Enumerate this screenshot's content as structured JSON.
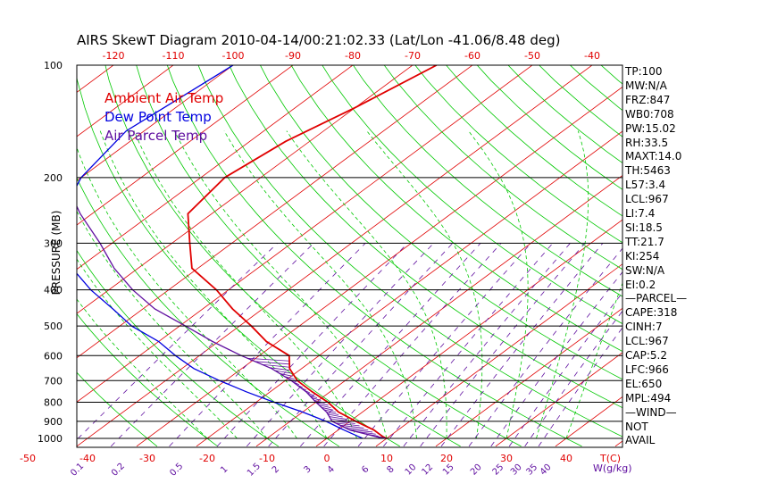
{
  "chart_data": {
    "type": "line",
    "title": "AIRS SkewT Diagram 2010-04-14/00:21:02.33 (Lat/Lon -41.06/8.48 deg)",
    "ylabel": "PRESSURE (MB)",
    "pressure_ticks": [
      100,
      200,
      300,
      400,
      500,
      600,
      700,
      800,
      900,
      1000
    ],
    "top_temp_ticks": [
      -120,
      -110,
      -100,
      -90,
      -80,
      -70,
      -60,
      -50,
      -40
    ],
    "bottom_temp_ticks": [
      -50,
      -40,
      -30,
      -20,
      -10,
      0,
      10,
      20,
      30,
      40
    ],
    "bottom_temp_unit": "T(C)",
    "mixing_ratio_ticks": [
      "0.1",
      "0.2",
      "0.5",
      "1",
      "1.5",
      "2",
      "3",
      "4",
      "6",
      "8",
      "10",
      "12",
      "15",
      "20",
      "25",
      "30",
      "35",
      "40"
    ],
    "mixing_ratio_unit": "W(g/kg)",
    "legend": [
      {
        "label": "Ambient Air Temp",
        "color": "#e00000"
      },
      {
        "label": "Dew Point Temp",
        "color": "#0000e0"
      },
      {
        "label": "Air Parcel Temp",
        "color": "#6010a0"
      }
    ],
    "series": [
      {
        "name": "Ambient Air Temp",
        "color": "#e00000",
        "points": [
          [
            100,
            -66
          ],
          [
            130,
            -70
          ],
          [
            160,
            -74
          ],
          [
            200,
            -76
          ],
          [
            250,
            -74
          ],
          [
            300,
            -67
          ],
          [
            350,
            -61
          ],
          [
            400,
            -52
          ],
          [
            450,
            -45
          ],
          [
            500,
            -38
          ],
          [
            550,
            -32
          ],
          [
            600,
            -25
          ],
          [
            650,
            -22
          ],
          [
            700,
            -18
          ],
          [
            750,
            -13
          ],
          [
            800,
            -8
          ],
          [
            850,
            -4
          ],
          [
            900,
            1
          ],
          [
            950,
            6
          ],
          [
            990,
            9
          ],
          [
            1000,
            10
          ]
        ]
      },
      {
        "name": "Dew Point Temp",
        "color": "#0000e0",
        "points": [
          [
            100,
            -100
          ],
          [
            150,
            -103
          ],
          [
            200,
            -100
          ],
          [
            250,
            -95
          ],
          [
            300,
            -88
          ],
          [
            350,
            -81
          ],
          [
            400,
            -73
          ],
          [
            450,
            -65
          ],
          [
            500,
            -58
          ],
          [
            550,
            -50
          ],
          [
            600,
            -44
          ],
          [
            650,
            -38
          ],
          [
            700,
            -31
          ],
          [
            750,
            -24
          ],
          [
            800,
            -17
          ],
          [
            850,
            -10
          ],
          [
            900,
            -4
          ],
          [
            950,
            1
          ],
          [
            990,
            5
          ],
          [
            1000,
            6
          ]
        ]
      },
      {
        "name": "Air Parcel Temp",
        "color": "#6010a0",
        "points": [
          [
            100,
            -130
          ],
          [
            150,
            -115
          ],
          [
            200,
            -103
          ],
          [
            250,
            -92
          ],
          [
            300,
            -82
          ],
          [
            350,
            -74
          ],
          [
            400,
            -66
          ],
          [
            450,
            -58
          ],
          [
            500,
            -49
          ],
          [
            550,
            -41
          ],
          [
            600,
            -33
          ],
          [
            650,
            -25
          ],
          [
            700,
            -19
          ],
          [
            750,
            -14
          ],
          [
            800,
            -10
          ],
          [
            850,
            -6
          ],
          [
            900,
            -3
          ],
          [
            950,
            2
          ],
          [
            990,
            8
          ],
          [
            1000,
            10
          ]
        ]
      }
    ],
    "indices": [
      "TP:100",
      "MW:N/A",
      "FRZ:847",
      "WB0:708",
      "PW:15.02",
      "RH:33.5",
      "MAXT:14.0",
      "TH:5463",
      "L57:3.4",
      "LCL:967",
      "LI:7.4",
      "SI:18.5",
      "TT:21.7",
      "KI:254",
      "SW:N/A",
      "EI:0.2",
      "—PARCEL—",
      "CAPE:318",
      "CINH:7",
      "LCL:967",
      "CAP:5.2",
      "LFC:966",
      "EL:650",
      "MPL:494",
      "—WIND—",
      "NOT",
      "AVAIL"
    ],
    "colors": {
      "isotherm": "#e00000",
      "dry_adiabat": "#00c800",
      "moist_adiabat": "#00c800",
      "mixing_ratio": "#6010a0",
      "bottom_axis": "#e00000",
      "mixing_axis": "#6010a0",
      "top_axis": "#e00000",
      "hatch": "#6010a0"
    },
    "grid": true
  }
}
